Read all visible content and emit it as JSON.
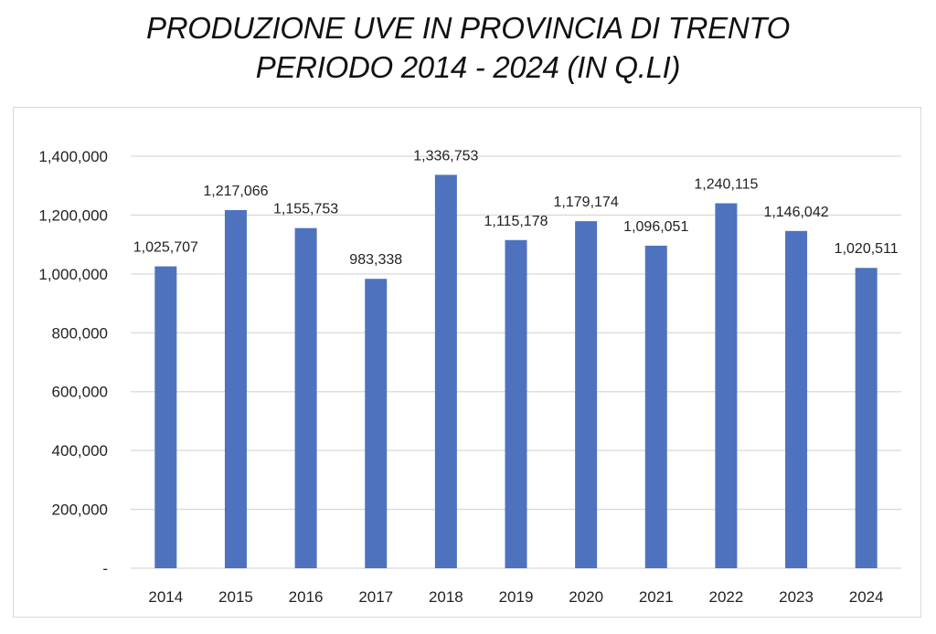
{
  "title": {
    "line1": "PRODUZIONE UVE IN PROVINCIA DI TRENTO",
    "line2": "PERIODO 2014 - 2024 (IN Q.LI)"
  },
  "colors": {
    "bar": "#4F72BE",
    "grid": "#D9D9D9",
    "frame": "#D9D9D9"
  },
  "chart_data": {
    "type": "bar",
    "title": "PRODUZIONE UVE IN PROVINCIA DI TRENTO PERIODO 2014 - 2024 (IN Q.LI)",
    "xlabel": "",
    "ylabel": "",
    "categories": [
      "2014",
      "2015",
      "2016",
      "2017",
      "2018",
      "2019",
      "2020",
      "2021",
      "2022",
      "2023",
      "2024"
    ],
    "values": [
      1025707,
      1217066,
      1155753,
      983338,
      1336753,
      1115178,
      1179174,
      1096051,
      1240115,
      1146042,
      1020511
    ],
    "value_labels": [
      "1,025,707",
      "1,217,066",
      "1,155,753",
      "983,338",
      "1,336,753",
      "1,115,178",
      "1,179,174",
      "1,096,051",
      "1,240,115",
      "1,146,042",
      "1,020,511"
    ],
    "ylim": [
      0,
      1400000
    ],
    "yticks": [
      0,
      200000,
      400000,
      600000,
      800000,
      1000000,
      1200000,
      1400000
    ],
    "ytick_labels": [
      "-",
      "200,000",
      "400,000",
      "600,000",
      "800,000",
      "1,000,000",
      "1,200,000",
      "1,400,000"
    ],
    "grid": true,
    "legend": null
  }
}
